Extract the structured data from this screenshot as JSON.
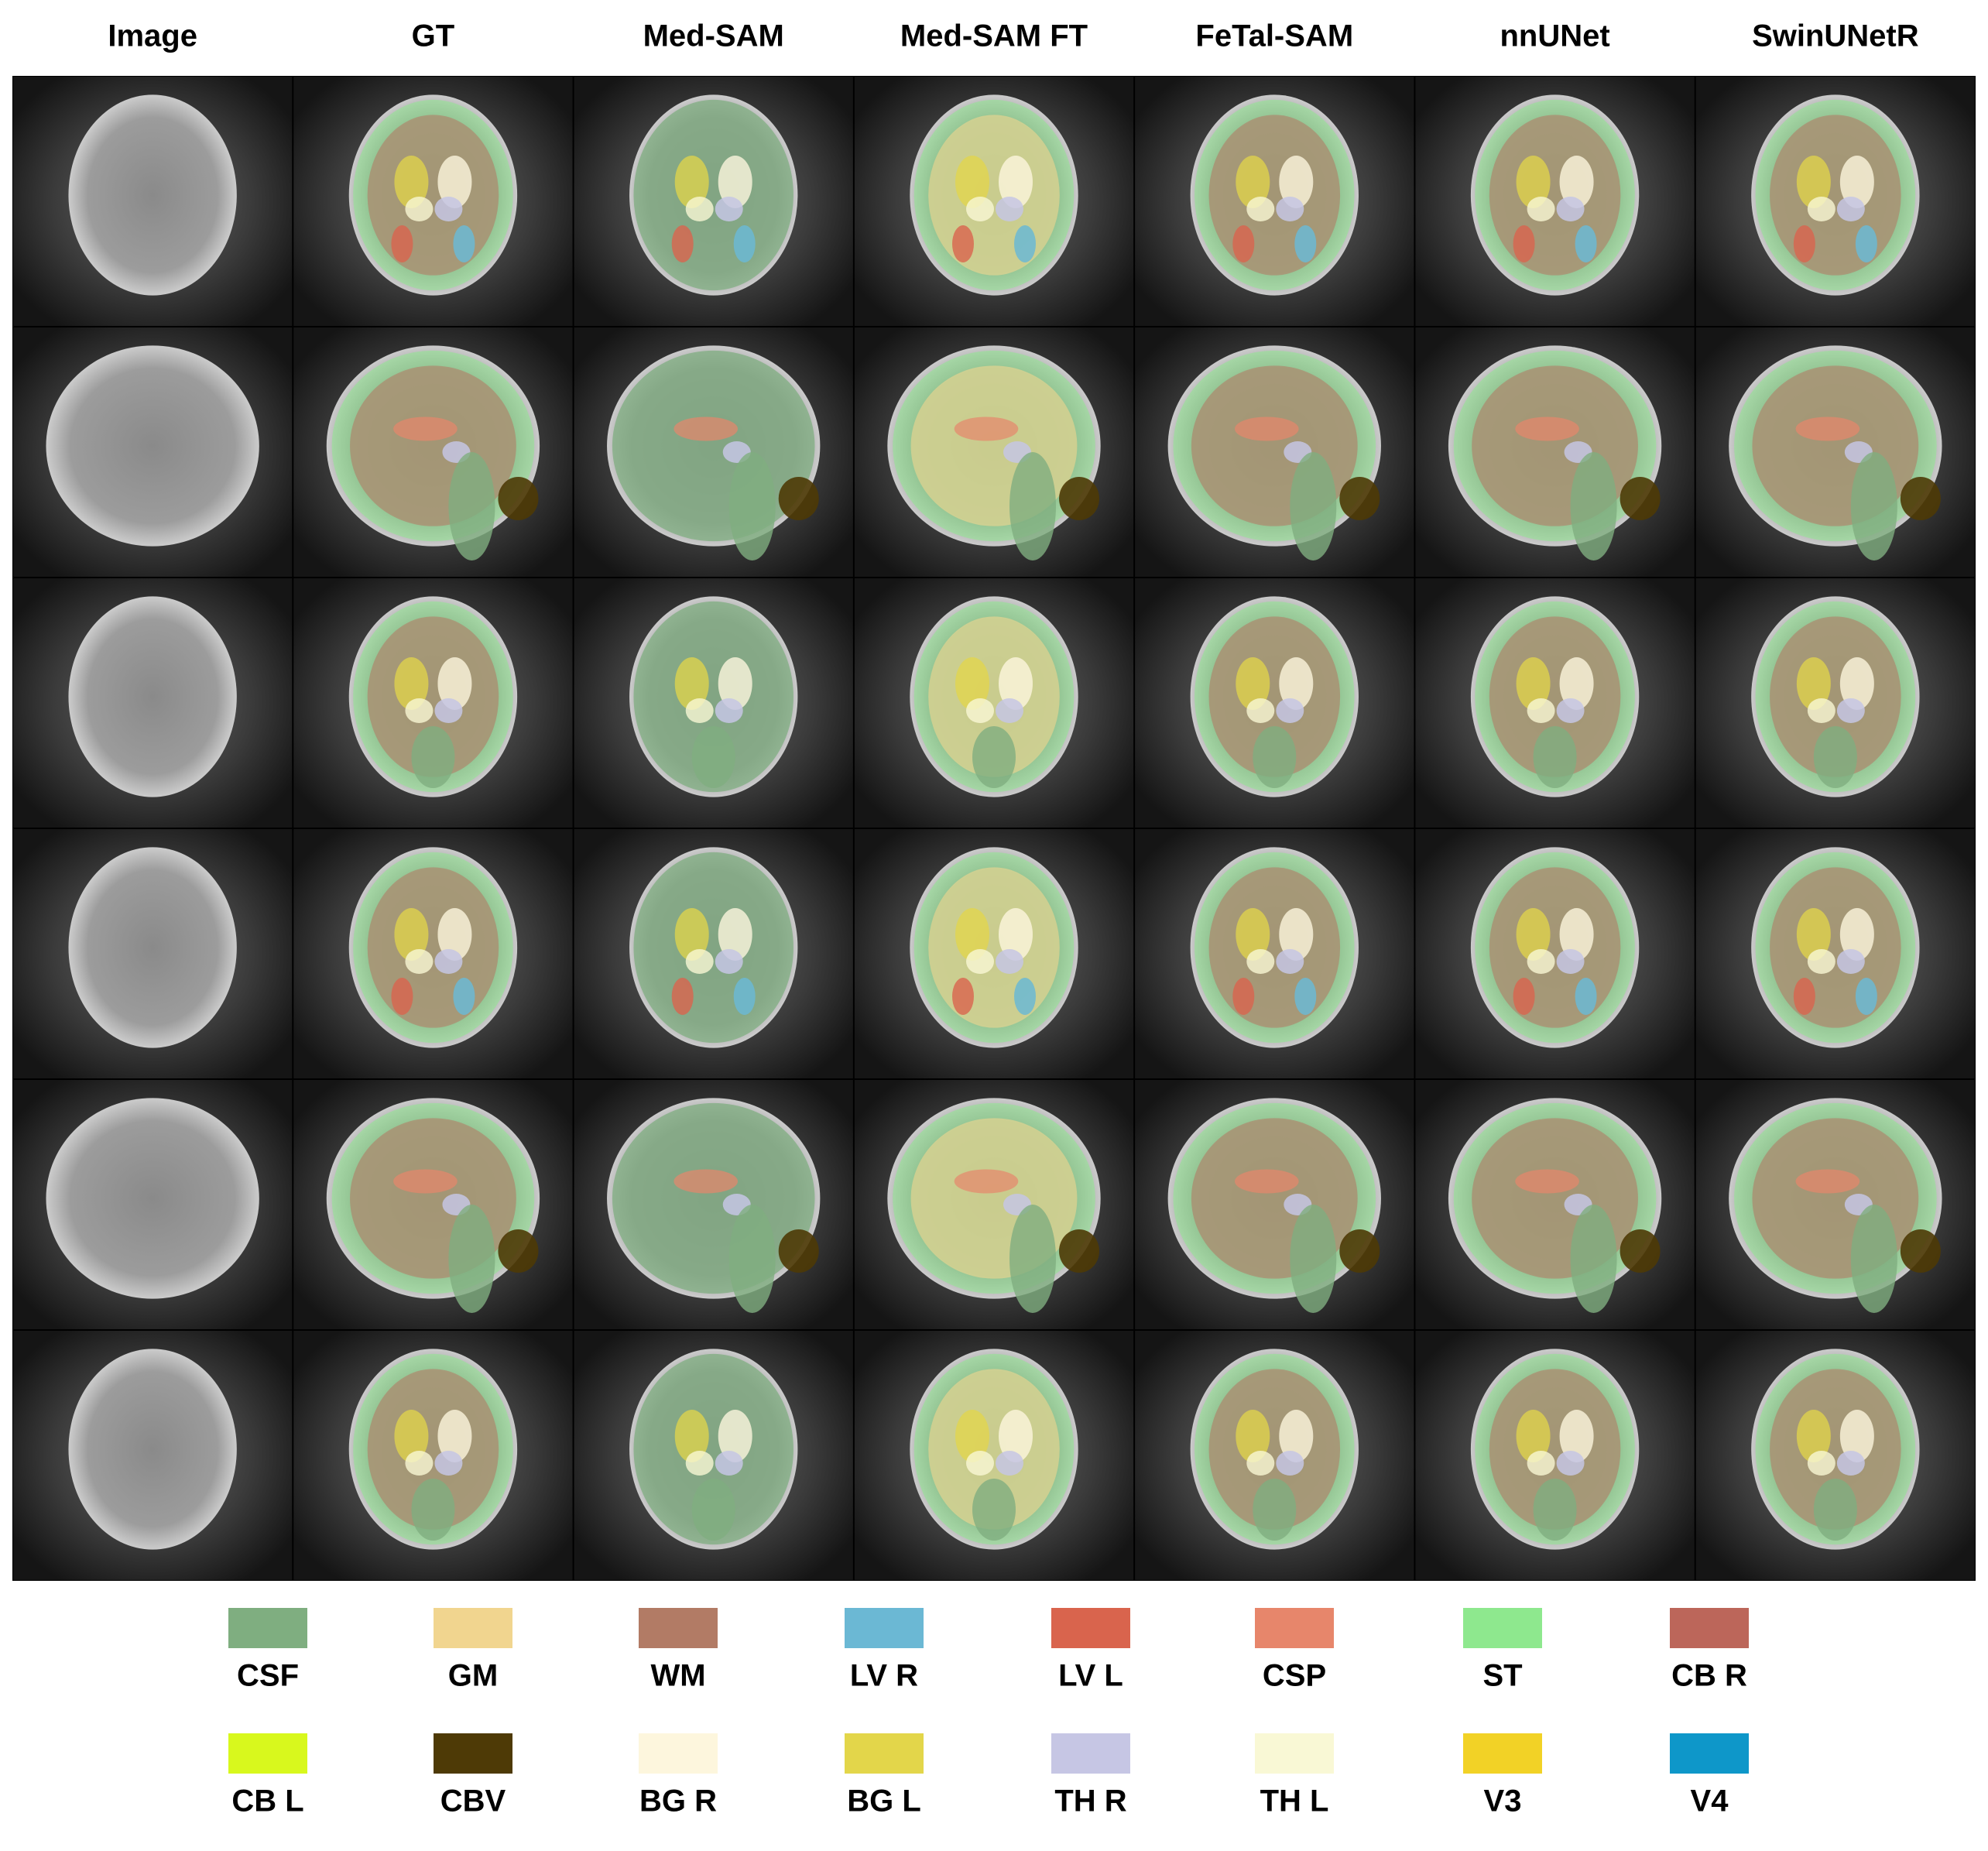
{
  "header": {
    "columns": [
      "Image",
      "GT",
      "Med-SAM",
      "Med-SAM FT",
      "FeTal-SAM",
      "nnUNet",
      "SwinUNetR"
    ]
  },
  "legend": {
    "items": [
      {
        "label": "CSF",
        "color": "#7fae80"
      },
      {
        "label": "GM",
        "color": "#f1d58f"
      },
      {
        "label": "WM",
        "color": "#b27b65"
      },
      {
        "label": "LV R",
        "color": "#6bb8d4"
      },
      {
        "label": "LV L",
        "color": "#d9644d"
      },
      {
        "label": "CSP",
        "color": "#e7866b"
      },
      {
        "label": "ST",
        "color": "#8ee88e"
      },
      {
        "label": "CB R",
        "color": "#bc665a"
      },
      {
        "label": "CB L",
        "color": "#d8f81d"
      },
      {
        "label": "CBV",
        "color": "#4e3a06"
      },
      {
        "label": "BG R",
        "color": "#fdf6dd"
      },
      {
        "label": "BG L",
        "color": "#e3d64a"
      },
      {
        "label": "TH R",
        "color": "#c6c6e4"
      },
      {
        "label": "TH L",
        "color": "#f9f8d5"
      },
      {
        "label": "V3",
        "color": "#f2d226"
      },
      {
        "label": "V4",
        "color": "#0e97c9"
      }
    ]
  }
}
